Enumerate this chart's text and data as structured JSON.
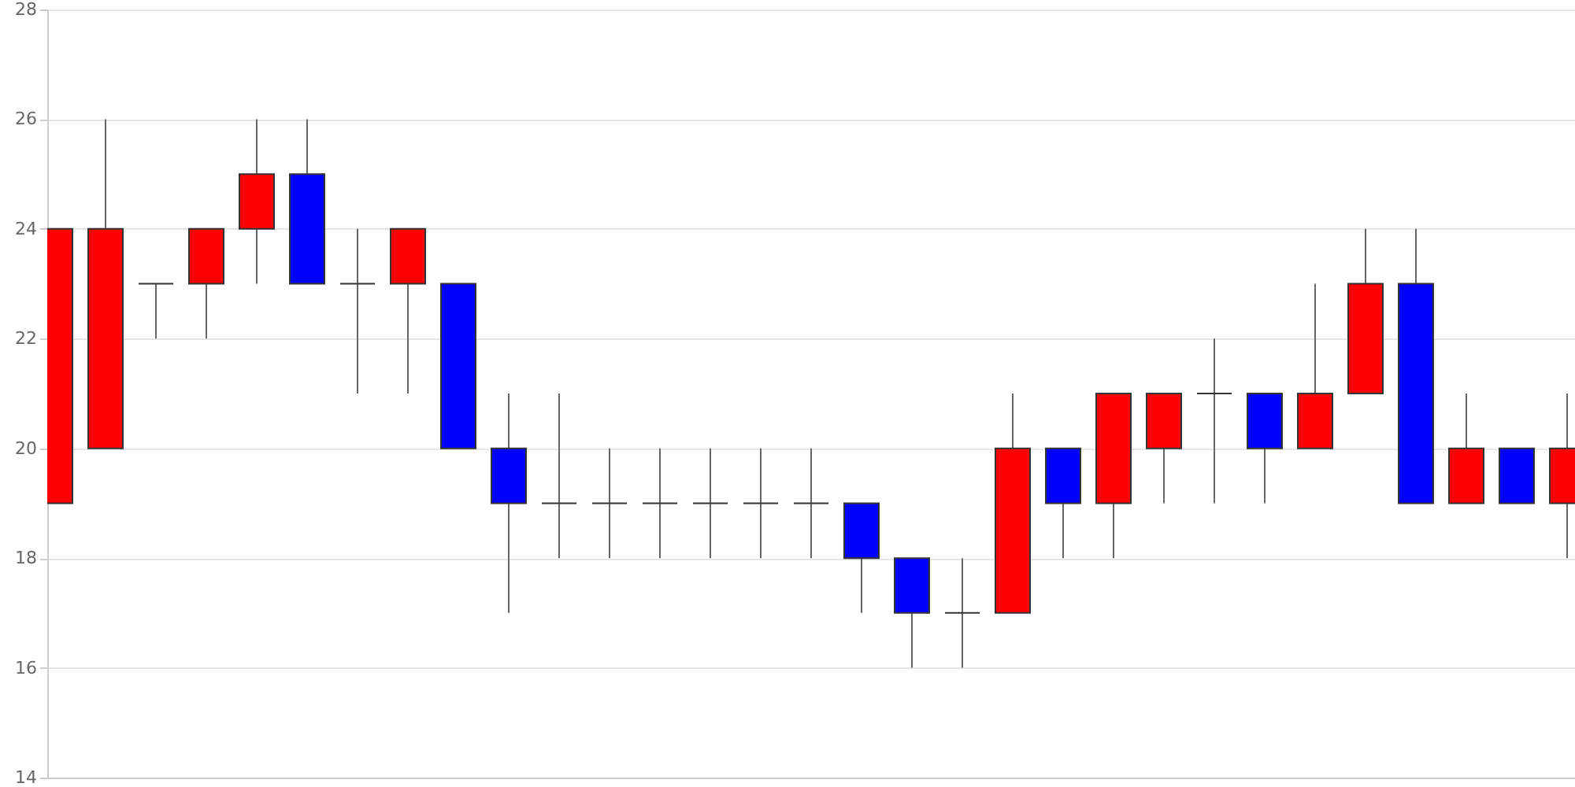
{
  "chart_data": {
    "type": "candlestick",
    "categories": [
      null,
      null,
      null,
      null,
      null,
      null,
      null,
      null,
      null,
      null,
      null,
      null,
      null,
      null,
      null,
      null,
      null,
      null,
      null,
      null,
      null,
      null,
      null,
      null,
      null,
      null,
      null,
      null,
      null,
      null,
      null
    ],
    "ohlc": [
      [
        19,
        24,
        19,
        24
      ],
      [
        20,
        26,
        20,
        24
      ],
      [
        23,
        23,
        22,
        23
      ],
      [
        23,
        24,
        22,
        24
      ],
      [
        24,
        26,
        23,
        25
      ],
      [
        25,
        26,
        23,
        23
      ],
      [
        23,
        24,
        21,
        23
      ],
      [
        23,
        24,
        21,
        24
      ],
      [
        23,
        23,
        20,
        20
      ],
      [
        20,
        21,
        17,
        19
      ],
      [
        19,
        21,
        18,
        19
      ],
      [
        19,
        20,
        18,
        19
      ],
      [
        19,
        20,
        18,
        19
      ],
      [
        19,
        20,
        18,
        19
      ],
      [
        19,
        20,
        18,
        19
      ],
      [
        19,
        20,
        18,
        19
      ],
      [
        19,
        19,
        17,
        18
      ],
      [
        18,
        18,
        16,
        17
      ],
      [
        17,
        18,
        16,
        17
      ],
      [
        17,
        21,
        17,
        20
      ],
      [
        20,
        20,
        18,
        19
      ],
      [
        19,
        21,
        18,
        21
      ],
      [
        20,
        21,
        19,
        21
      ],
      [
        21,
        22,
        19,
        21
      ],
      [
        21,
        21,
        19,
        20
      ],
      [
        20,
        23,
        20,
        21
      ],
      [
        21,
        24,
        21,
        23
      ],
      [
        23,
        24,
        19,
        19
      ],
      [
        19,
        21,
        19,
        20
      ],
      [
        20,
        20,
        19,
        19
      ],
      [
        19,
        21,
        18,
        20
      ]
    ],
    "colors": [
      "#ff0000",
      "#ff0000",
      "#333333",
      "#ff0000",
      "#ff0000",
      "#0000ff",
      "#333333",
      "#ff0000",
      "#0000ff",
      "#0000ff",
      "#333333",
      "#333333",
      "#333333",
      "#333333",
      "#333333",
      "#333333",
      "#0000ff",
      "#0000ff",
      "#333333",
      "#ff0000",
      "#0000ff",
      "#ff0000",
      "#ff0000",
      "#333333",
      "#0000ff",
      "#ff0000",
      "#ff0000",
      "#0000ff",
      "#ff0000",
      "#0000ff",
      "#ff0000"
    ],
    "ylim": [
      14,
      28
    ],
    "yticks": [
      14,
      16,
      18,
      20,
      22,
      24,
      26,
      28
    ],
    "grid": "y",
    "tick_labels": "y"
  }
}
